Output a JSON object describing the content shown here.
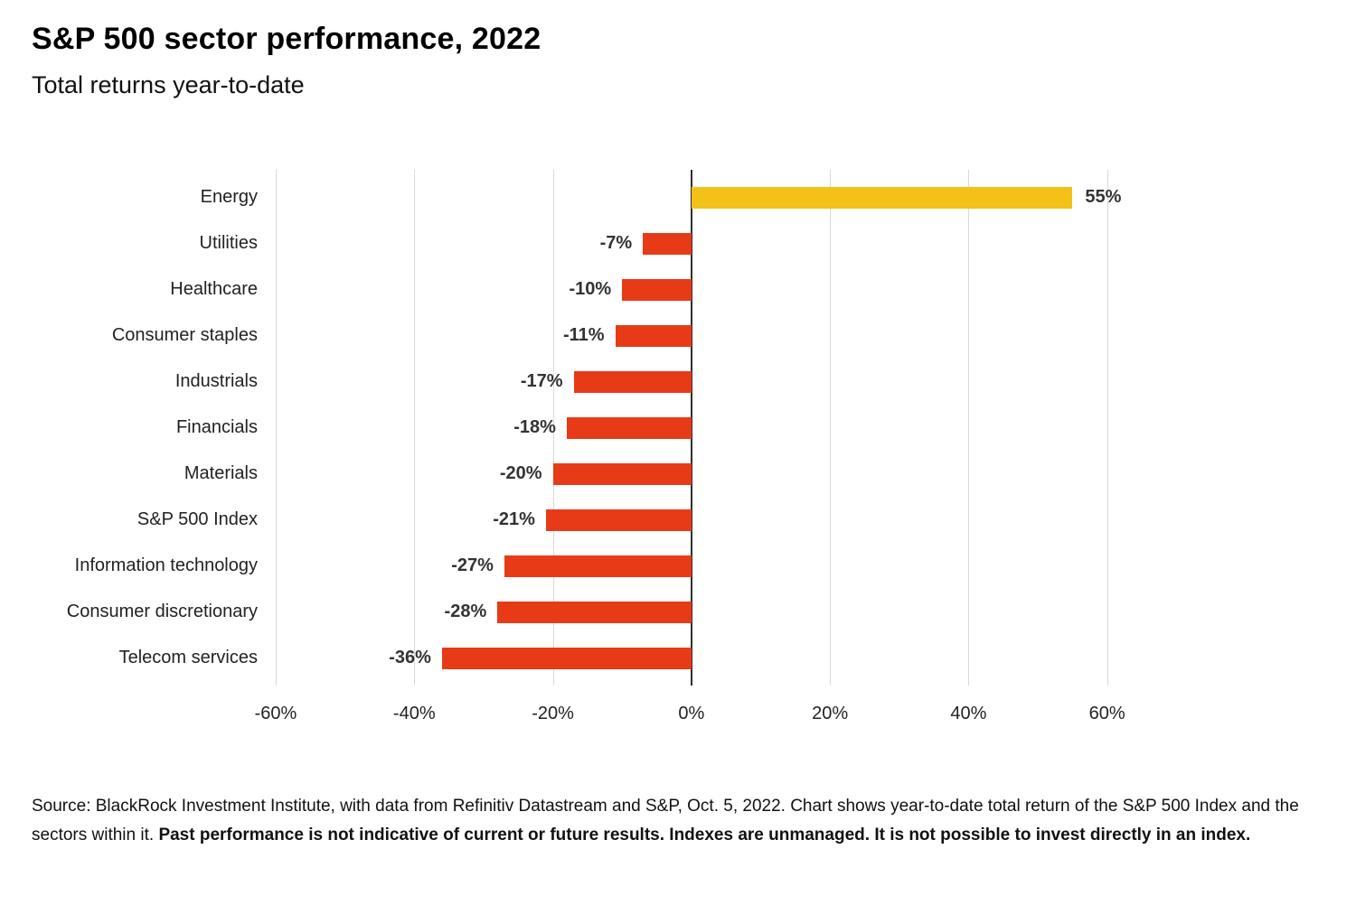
{
  "header": {
    "title": "S&P 500 sector performance, 2022",
    "subtitle": "Total returns year-to-date"
  },
  "chart_data": {
    "type": "bar",
    "orientation": "horizontal",
    "title": "S&P 500 sector performance, 2022",
    "subtitle": "Total returns year-to-date",
    "xlabel": "",
    "ylabel": "",
    "categories": [
      "Energy",
      "Utilities",
      "Healthcare",
      "Consumer staples",
      "Industrials",
      "Financials",
      "Materials",
      "S&P 500 Index",
      "Information technology",
      "Consumer discretionary",
      "Telecom services"
    ],
    "values": [
      55,
      -7,
      -10,
      -11,
      -17,
      -18,
      -20,
      -21,
      -27,
      -28,
      -36
    ],
    "value_labels": [
      "55%",
      "-7%",
      "-10%",
      "-11%",
      "-17%",
      "-18%",
      "-20%",
      "-21%",
      "-27%",
      "-28%",
      "-36%"
    ],
    "xlim": [
      -60,
      60
    ],
    "ticks": [
      -60,
      -40,
      -20,
      0,
      20,
      40,
      60
    ],
    "tick_labels": [
      "-60%",
      "-40%",
      "-20%",
      "0%",
      "20%",
      "40%",
      "60%"
    ],
    "grid": true,
    "legend": "none",
    "colors": {
      "positive_bar": "#F3C117",
      "negative_bar": "#E73B17",
      "gridline": "#d9d9d9",
      "zero_line": "#2f2f2f"
    }
  },
  "footer": {
    "source_normal": "Source: BlackRock Investment Institute, with data from Refinitiv Datastream and S&P, Oct. 5, 2022. Chart shows year-to-date total return of the S&P 500 Index and the sectors within it. ",
    "source_bold": "Past performance is not indicative of current or future results. Indexes are unmanaged. It is not possible to invest directly in an index."
  }
}
